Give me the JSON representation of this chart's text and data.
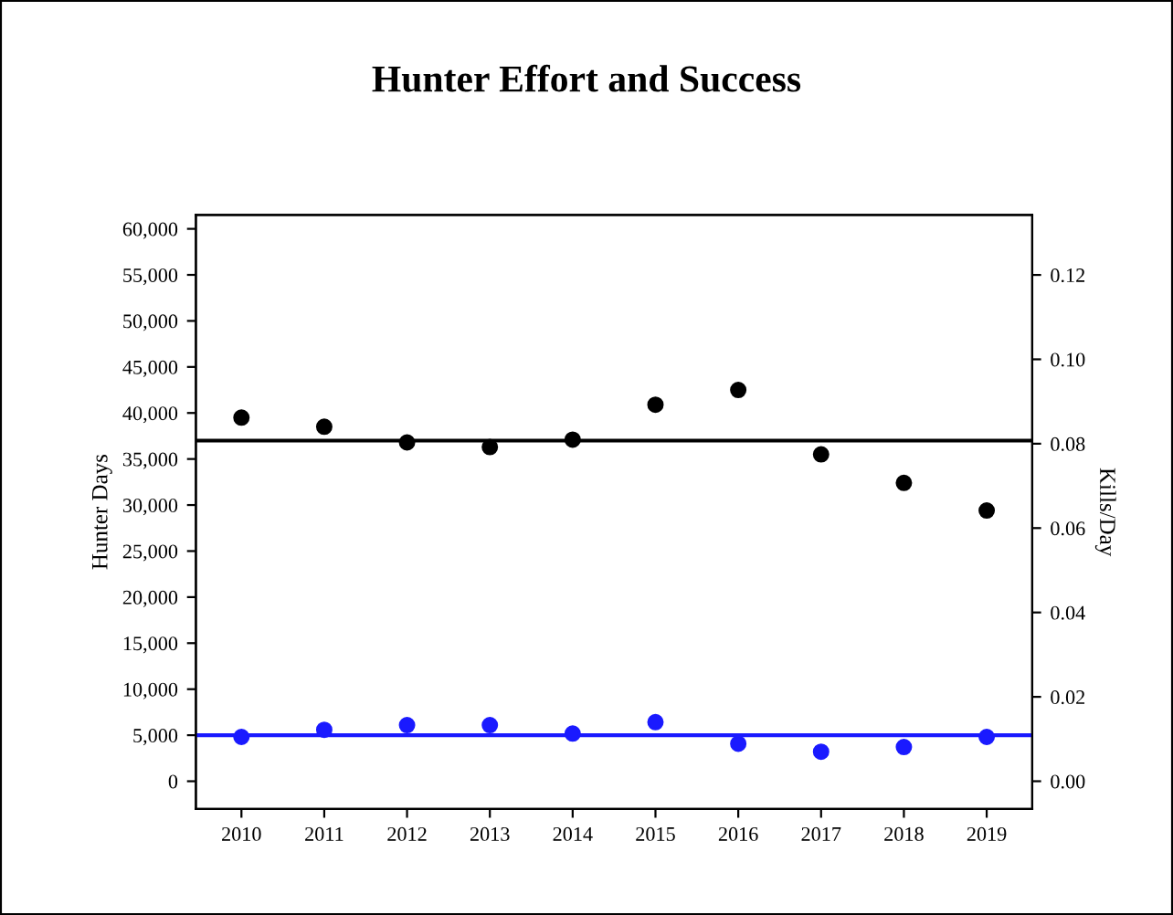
{
  "chart_data": {
    "type": "scatter",
    "title": "Hunter Effort and Success",
    "ylabel": "Hunter Days",
    "y2label": "Kills/Day",
    "categories": [
      "2010",
      "2011",
      "2012",
      "2013",
      "2014",
      "2015",
      "2016",
      "2017",
      "2018",
      "2019"
    ],
    "series": [
      {
        "color": "#000000",
        "values": [
          39500,
          38500,
          36800,
          36300,
          37100,
          40900,
          42500,
          35500,
          32400,
          29400
        ]
      },
      {
        "color": "#1a1aff",
        "axis": "y2",
        "values": [
          0.0105,
          0.0122,
          0.0133,
          0.0133,
          0.0113,
          0.014,
          0.0089,
          0.007,
          0.0081,
          0.0105
        ]
      }
    ],
    "ylim": [
      -3000,
      61500
    ],
    "yticks": [
      {
        "value": 0,
        "label": "0"
      },
      {
        "value": 5000,
        "label": "5,000"
      },
      {
        "value": 10000,
        "label": "10,000"
      },
      {
        "value": 15000,
        "label": "15,000"
      },
      {
        "value": 20000,
        "label": "20,000"
      },
      {
        "value": 25000,
        "label": "25,000"
      },
      {
        "value": 30000,
        "label": "30,000"
      },
      {
        "value": 35000,
        "label": "35,000"
      },
      {
        "value": 40000,
        "label": "40,000"
      },
      {
        "value": 45000,
        "label": "45,000"
      },
      {
        "value": 50000,
        "label": "50,000"
      },
      {
        "value": 55000,
        "label": "55,000"
      },
      {
        "value": 60000,
        "label": "60,000"
      }
    ],
    "y2lim": [
      -0.00655,
      0.1342
    ],
    "y2ticks": [
      {
        "value": 0,
        "label": "0.00"
      },
      {
        "value": 0.02,
        "label": "0.02"
      },
      {
        "value": 0.04,
        "label": "0.04"
      },
      {
        "value": 0.06,
        "label": "0.06"
      },
      {
        "value": 0.08,
        "label": "0.08"
      },
      {
        "value": 0.1,
        "label": "0.10"
      },
      {
        "value": 0.12,
        "label": "0.12"
      }
    ],
    "ref_lines": [
      {
        "axis": "y",
        "value": 37000,
        "color": "#000000"
      },
      {
        "axis": "y2",
        "value": 0.0109,
        "color": "#1a1aff"
      }
    ],
    "marker": "circle",
    "grid": false,
    "legend": false
  }
}
